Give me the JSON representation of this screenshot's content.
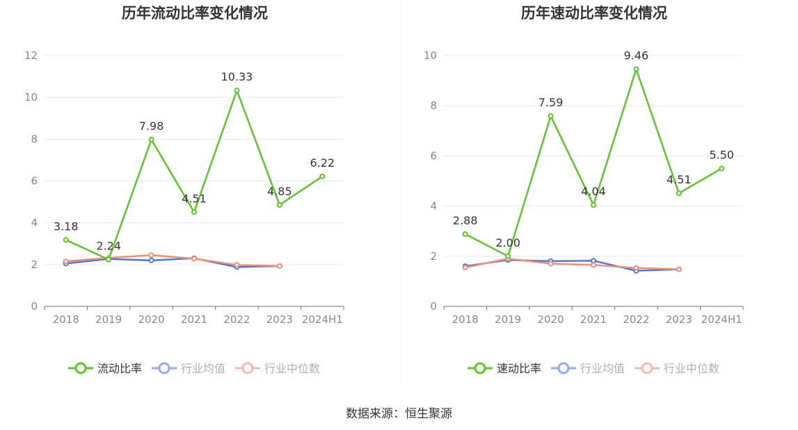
{
  "chart_data": [
    {
      "type": "line",
      "title": "历年流动比率变化情况",
      "categories": [
        "2018",
        "2019",
        "2020",
        "2021",
        "2022",
        "2023",
        "2024H1"
      ],
      "ylim": [
        0,
        12
      ],
      "yticks": [
        0,
        2,
        4,
        6,
        8,
        10,
        12
      ],
      "series": [
        {
          "name": "流动比率",
          "color": "#5cc52a",
          "labels": true,
          "values": [
            3.18,
            2.24,
            7.98,
            4.51,
            10.33,
            4.85,
            6.22
          ],
          "value_labels": [
            "3.18",
            "2.24",
            "7.98",
            "4.51",
            "10.33",
            "4.85",
            "6.22"
          ]
        },
        {
          "name": "行业均值",
          "color": "#4a78df",
          "labels": false,
          "values": [
            2.05,
            2.27,
            2.2,
            2.3,
            1.88,
            1.93,
            null
          ]
        },
        {
          "name": "行业中位数",
          "color": "#f28c6e",
          "labels": false,
          "values": [
            2.15,
            2.32,
            2.45,
            2.28,
            1.98,
            1.93,
            null
          ]
        }
      ]
    },
    {
      "type": "line",
      "title": "历年速动比率变化情况",
      "categories": [
        "2018",
        "2019",
        "2020",
        "2021",
        "2022",
        "2023",
        "2024H1"
      ],
      "ylim": [
        0,
        10
      ],
      "yticks": [
        0,
        2,
        4,
        6,
        8,
        10
      ],
      "series": [
        {
          "name": "速动比率",
          "color": "#5cc52a",
          "labels": true,
          "values": [
            2.88,
            2.0,
            7.59,
            4.04,
            9.46,
            4.51,
            5.5
          ],
          "value_labels": [
            "2.88",
            "2.00",
            "7.59",
            "4.04",
            "9.46",
            "4.51",
            "5.50"
          ]
        },
        {
          "name": "行业均值",
          "color": "#4a78df",
          "labels": false,
          "values": [
            1.6,
            1.85,
            1.8,
            1.82,
            1.42,
            1.48,
            null
          ]
        },
        {
          "name": "行业中位数",
          "color": "#f28c6e",
          "labels": false,
          "values": [
            1.55,
            1.9,
            1.7,
            1.65,
            1.53,
            1.48,
            null
          ]
        }
      ]
    }
  ],
  "footer": {
    "source": "数据来源：恒生聚源"
  }
}
